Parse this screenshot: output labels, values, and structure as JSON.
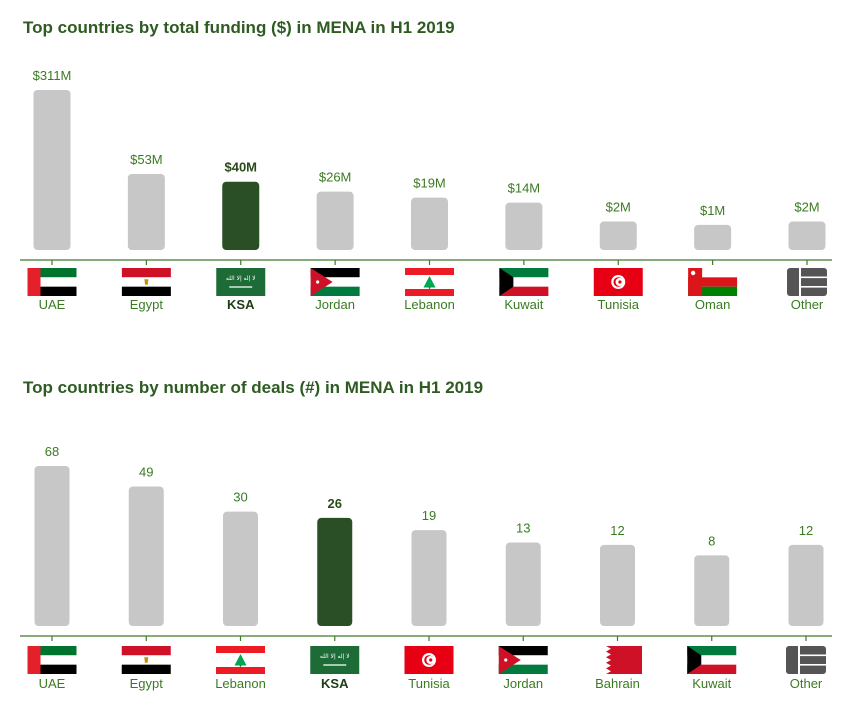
{
  "colors": {
    "title": "#2e5b22",
    "label": "#3a7b22",
    "bar": "#c7c7c7",
    "highlight_bar": "#2a4f27",
    "axis": "#3d7a2b"
  },
  "chart_data": [
    {
      "type": "bar",
      "title": "Top countries by total funding ($) in MENA in H1 2019",
      "categories": [
        "UAE",
        "Egypt",
        "KSA",
        "Jordan",
        "Lebanon",
        "Kuwait",
        "Tunisia",
        "Oman",
        "Other"
      ],
      "values": [
        311,
        53,
        40,
        26,
        19,
        14,
        2,
        1,
        2
      ],
      "value_labels": [
        "$311M",
        "$53M",
        "$40M",
        "$26M",
        "$19M",
        "$14M",
        "$2M",
        "$1M",
        "$2M"
      ],
      "unit": "$M",
      "highlight": "KSA",
      "flags": [
        "uae-flag",
        "egypt-flag",
        "ksa-flag",
        "jordan-flag",
        "lebanon-flag",
        "kuwait-flag",
        "tunisia-flag",
        "oman-flag",
        "other-icon"
      ],
      "xlabel": "",
      "ylabel": ""
    },
    {
      "type": "bar",
      "title": "Top countries by number of deals (#) in MENA in H1 2019",
      "categories": [
        "UAE",
        "Egypt",
        "Lebanon",
        "KSA",
        "Tunisia",
        "Jordan",
        "Bahrain",
        "Kuwait",
        "Other"
      ],
      "values": [
        68,
        49,
        30,
        26,
        19,
        13,
        12,
        8,
        12
      ],
      "value_labels": [
        "68",
        "49",
        "30",
        "26",
        "19",
        "13",
        "12",
        "8",
        "12"
      ],
      "unit": "#",
      "highlight": "KSA",
      "flags": [
        "uae-flag",
        "egypt-flag",
        "lebanon-flag",
        "ksa-flag",
        "tunisia-flag",
        "jordan-flag",
        "bahrain-flag",
        "kuwait-flag",
        "other-icon"
      ],
      "xlabel": "",
      "ylabel": ""
    }
  ]
}
